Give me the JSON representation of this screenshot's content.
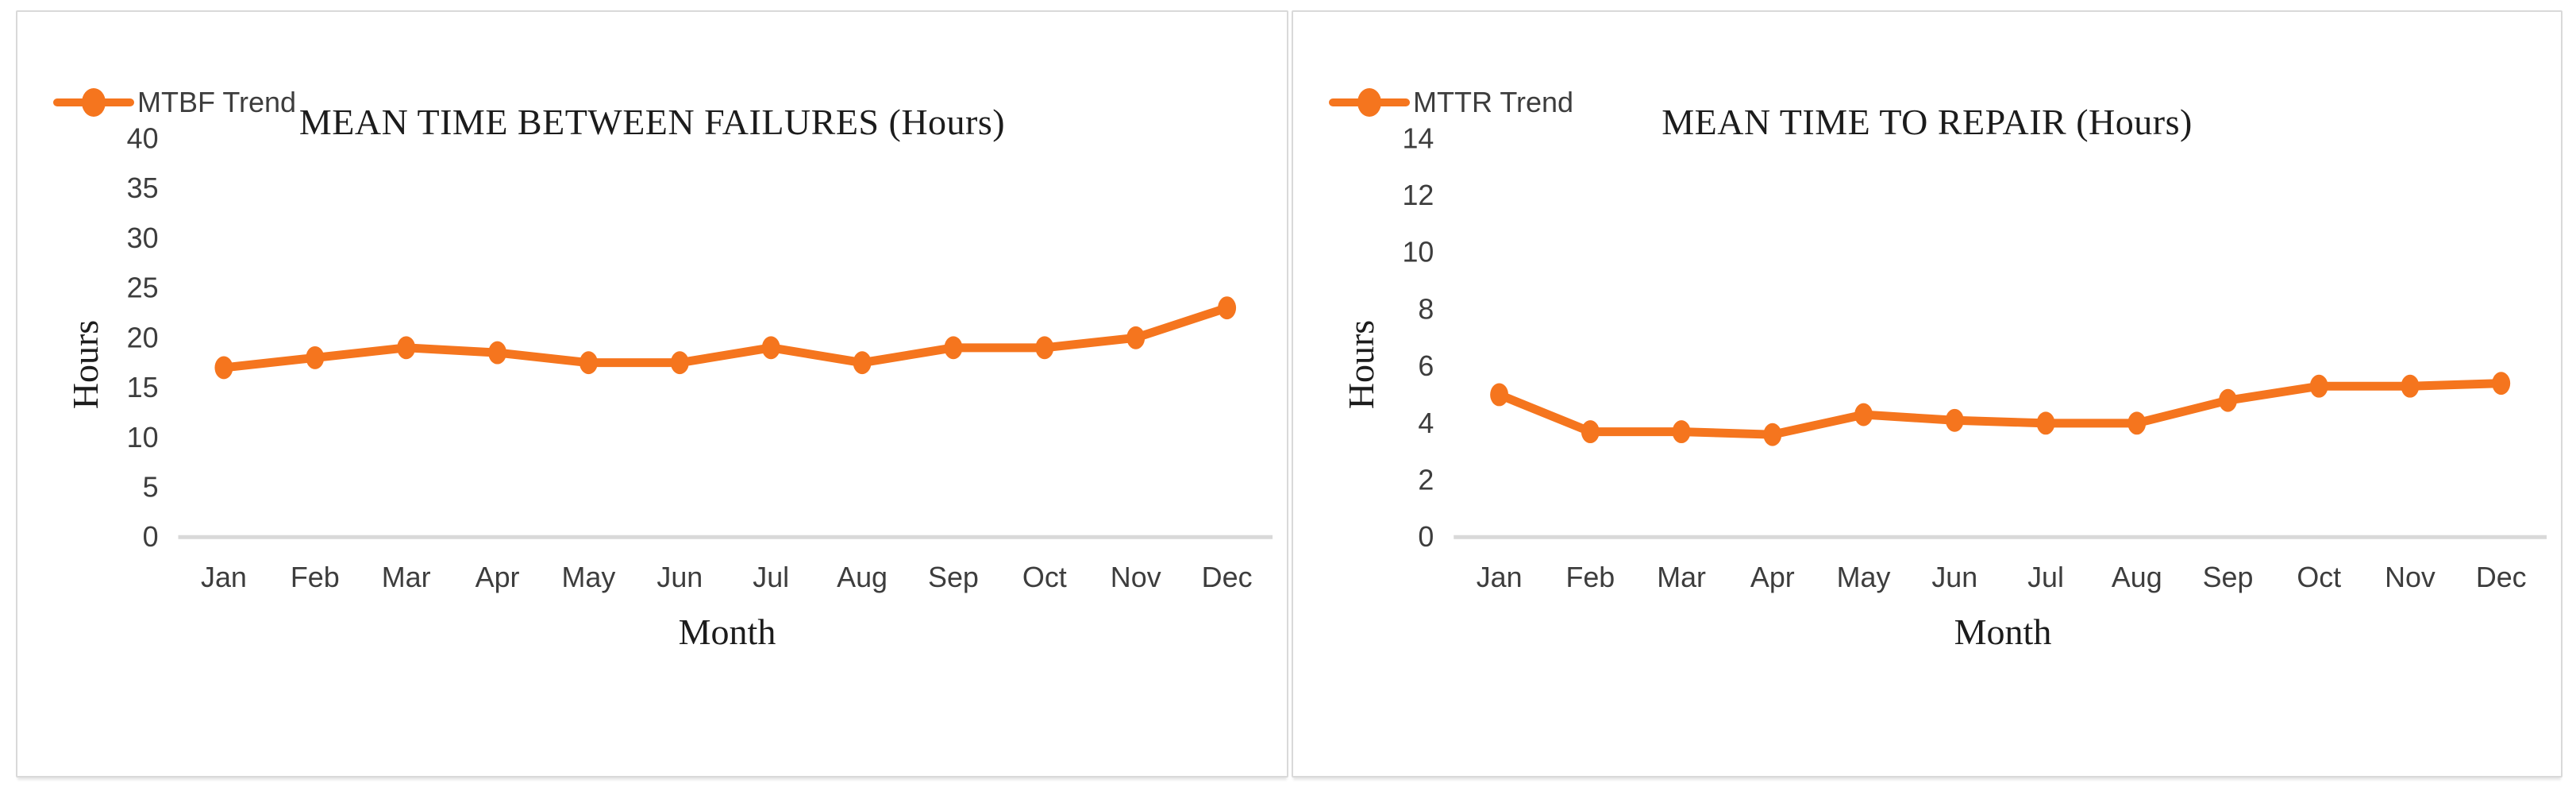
{
  "colors": {
    "accent": "#F5751E",
    "title_text": "#1C1C1C",
    "label_text": "#3D3D3D",
    "axis_line": "#D9D9D9",
    "panel_border": "#D9D9D9",
    "panel_background": "#FFFFFF"
  },
  "chart_data": [
    {
      "type": "line",
      "title": "MEAN TIME BETWEEN FAILURES (Hours)",
      "xlabel": "Month",
      "ylabel": "Hours",
      "legend_position": "top-left",
      "grid": false,
      "categories": [
        "Jan",
        "Feb",
        "Mar",
        "Apr",
        "May",
        "Jun",
        "Jul",
        "Aug",
        "Sep",
        "Oct",
        "Nov",
        "Dec"
      ],
      "series": [
        {
          "name": "MTBF Trend",
          "values": [
            17,
            18,
            19,
            18.5,
            17.5,
            17.5,
            19,
            17.5,
            19,
            19,
            20,
            23
          ]
        }
      ],
      "ylim": [
        0,
        40
      ],
      "y_ticks": [
        40,
        35,
        30,
        25,
        20,
        15,
        10,
        5,
        0
      ]
    },
    {
      "type": "line",
      "title": "MEAN TIME TO REPAIR (Hours)",
      "xlabel": "Month",
      "ylabel": "Hours",
      "legend_position": "top-left",
      "grid": false,
      "categories": [
        "Jan",
        "Feb",
        "Mar",
        "Apr",
        "May",
        "Jun",
        "Jul",
        "Aug",
        "Sep",
        "Oct",
        "Nov",
        "Dec"
      ],
      "series": [
        {
          "name": "MTTR Trend",
          "values": [
            5,
            3.7,
            3.7,
            3.6,
            4.3,
            4.1,
            4,
            4,
            4.8,
            5.3,
            5.3,
            5.4
          ]
        }
      ],
      "ylim": [
        0,
        14
      ],
      "y_ticks": [
        14,
        12,
        10,
        8,
        6,
        4,
        2,
        0
      ]
    }
  ]
}
